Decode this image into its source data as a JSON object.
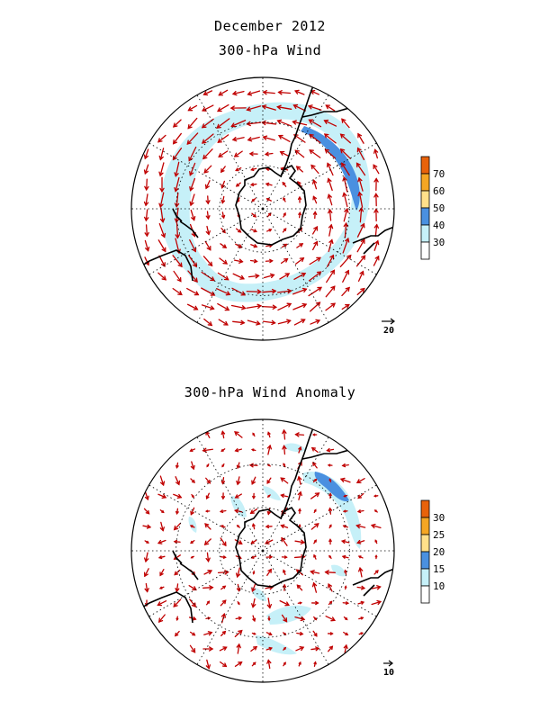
{
  "header": {
    "main_title": "December 2012",
    "top_title": "300-hPa Wind",
    "bottom_title": "300-hPa Wind Anomaly"
  },
  "top_map": {
    "reference_vector_label": "20",
    "colorbar": {
      "ticks": [
        "30",
        "40",
        "50",
        "60",
        "70"
      ],
      "colors": [
        "#ffffff",
        "#c6f0f8",
        "#4a90e0",
        "#ffe08a",
        "#f5a623",
        "#e8620a"
      ]
    }
  },
  "bottom_map": {
    "reference_vector_label": "10",
    "colorbar": {
      "ticks": [
        "10",
        "15",
        "20",
        "25",
        "30"
      ],
      "colors": [
        "#ffffff",
        "#c6f0f8",
        "#4a90e0",
        "#ffe08a",
        "#f5a623",
        "#e8620a"
      ]
    }
  },
  "colors": {
    "vector": "#c00000",
    "coast": "#000000",
    "grid": "#000000",
    "shade_light": "#c6f0f8",
    "shade_dark": "#4a90e0"
  }
}
